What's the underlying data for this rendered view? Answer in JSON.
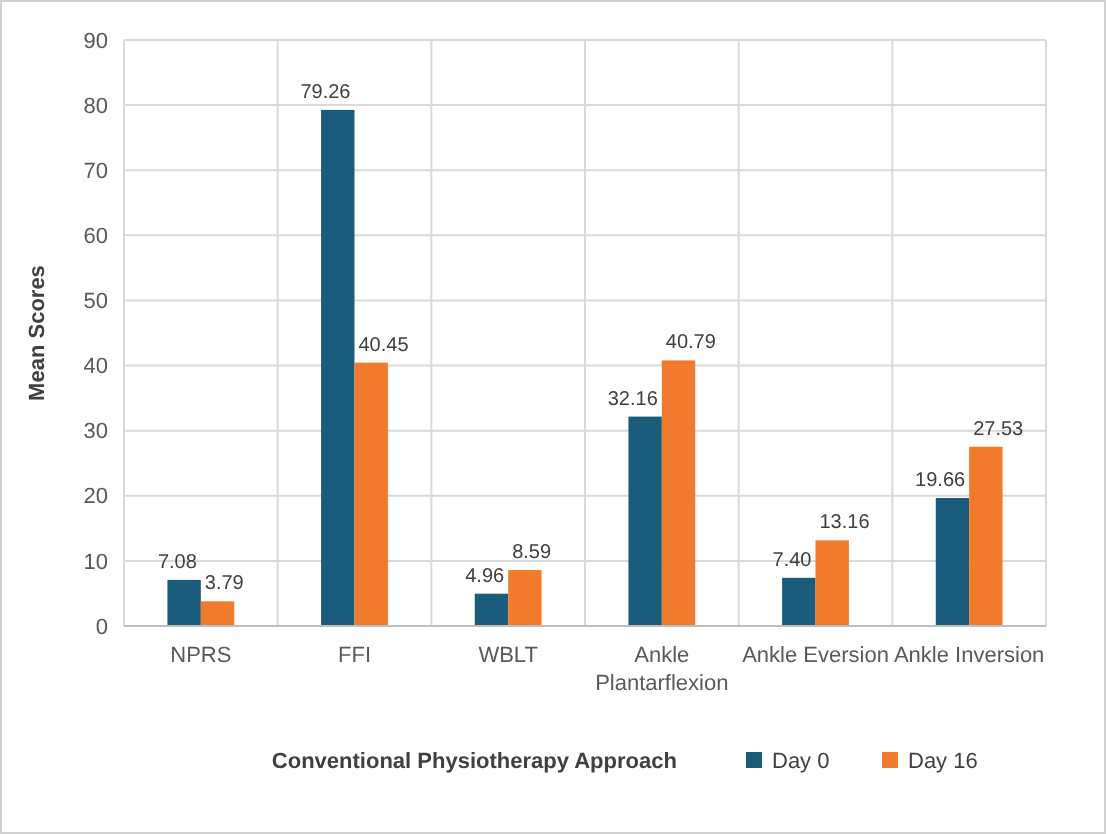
{
  "chart_data": {
    "type": "bar",
    "xlabel": "Conventional Physiotherapy Approach",
    "ylabel": "Mean Scores",
    "categories": [
      "NPRS",
      "FFI",
      "WBLT",
      "Ankle Plantarflexion",
      "Ankle Eversion",
      "Ankle Inversion"
    ],
    "series": [
      {
        "name": "Day 0",
        "color": "#1b5b7c",
        "values": [
          7.08,
          79.26,
          4.96,
          32.16,
          7.4,
          19.66
        ],
        "value_labels": [
          "7.08",
          "79.26",
          "4.96",
          "32.16",
          "7.40",
          "19.66"
        ]
      },
      {
        "name": "Day 16",
        "color": "#f07b2c",
        "values": [
          3.79,
          40.45,
          8.59,
          40.79,
          13.16,
          27.53
        ],
        "value_labels": [
          "3.79",
          "40.45",
          "8.59",
          "40.79",
          "13.16",
          "27.53"
        ]
      }
    ],
    "ylim": [
      0,
      90
    ],
    "yticks": [
      0,
      10,
      20,
      30,
      40,
      50,
      60,
      70,
      80,
      90
    ],
    "grid": true,
    "legend": "bottom right"
  }
}
